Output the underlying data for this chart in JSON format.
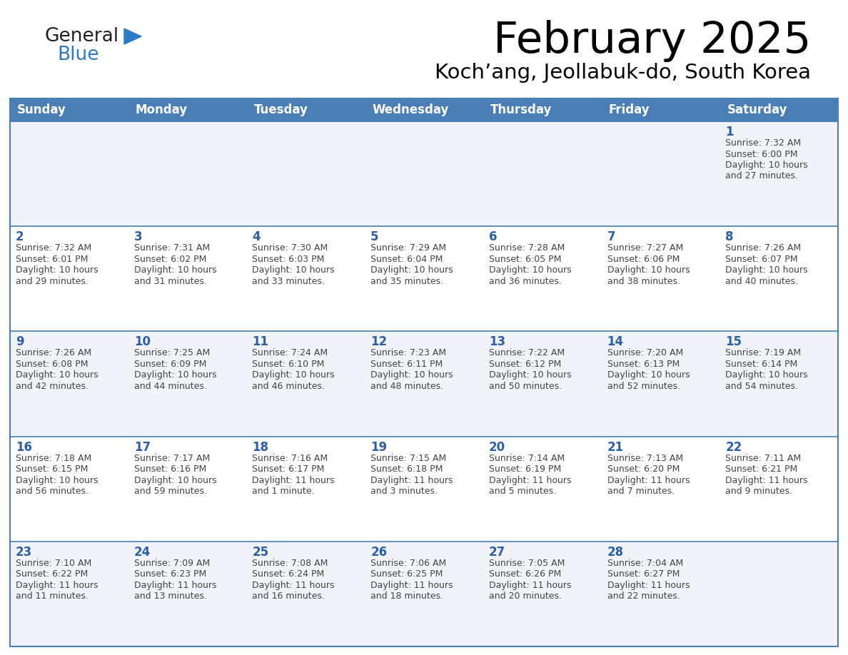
{
  "title": "February 2025",
  "subtitle": "Koch’ang, Jeollabuk-do, South Korea",
  "days_of_week": [
    "Sunday",
    "Monday",
    "Tuesday",
    "Wednesday",
    "Thursday",
    "Friday",
    "Saturday"
  ],
  "header_bg": "#4a7fb5",
  "header_text": "#ffffff",
  "row_bg_odd": "#f0f4f8",
  "row_bg_even": "#ffffff",
  "border_color": "#4a7fb5",
  "day_number_color": "#2e5fa3",
  "info_text_color": "#444444",
  "calendar": [
    [
      null,
      null,
      null,
      null,
      null,
      null,
      {
        "day": 1,
        "sunrise": "7:32 AM",
        "sunset": "6:00 PM",
        "daylight": "10 hours and 27 minutes."
      }
    ],
    [
      {
        "day": 2,
        "sunrise": "7:32 AM",
        "sunset": "6:01 PM",
        "daylight": "10 hours and 29 minutes."
      },
      {
        "day": 3,
        "sunrise": "7:31 AM",
        "sunset": "6:02 PM",
        "daylight": "10 hours and 31 minutes."
      },
      {
        "day": 4,
        "sunrise": "7:30 AM",
        "sunset": "6:03 PM",
        "daylight": "10 hours and 33 minutes."
      },
      {
        "day": 5,
        "sunrise": "7:29 AM",
        "sunset": "6:04 PM",
        "daylight": "10 hours and 35 minutes."
      },
      {
        "day": 6,
        "sunrise": "7:28 AM",
        "sunset": "6:05 PM",
        "daylight": "10 hours and 36 minutes."
      },
      {
        "day": 7,
        "sunrise": "7:27 AM",
        "sunset": "6:06 PM",
        "daylight": "10 hours and 38 minutes."
      },
      {
        "day": 8,
        "sunrise": "7:26 AM",
        "sunset": "6:07 PM",
        "daylight": "10 hours and 40 minutes."
      }
    ],
    [
      {
        "day": 9,
        "sunrise": "7:26 AM",
        "sunset": "6:08 PM",
        "daylight": "10 hours and 42 minutes."
      },
      {
        "day": 10,
        "sunrise": "7:25 AM",
        "sunset": "6:09 PM",
        "daylight": "10 hours and 44 minutes."
      },
      {
        "day": 11,
        "sunrise": "7:24 AM",
        "sunset": "6:10 PM",
        "daylight": "10 hours and 46 minutes."
      },
      {
        "day": 12,
        "sunrise": "7:23 AM",
        "sunset": "6:11 PM",
        "daylight": "10 hours and 48 minutes."
      },
      {
        "day": 13,
        "sunrise": "7:22 AM",
        "sunset": "6:12 PM",
        "daylight": "10 hours and 50 minutes."
      },
      {
        "day": 14,
        "sunrise": "7:20 AM",
        "sunset": "6:13 PM",
        "daylight": "10 hours and 52 minutes."
      },
      {
        "day": 15,
        "sunrise": "7:19 AM",
        "sunset": "6:14 PM",
        "daylight": "10 hours and 54 minutes."
      }
    ],
    [
      {
        "day": 16,
        "sunrise": "7:18 AM",
        "sunset": "6:15 PM",
        "daylight": "10 hours and 56 minutes."
      },
      {
        "day": 17,
        "sunrise": "7:17 AM",
        "sunset": "6:16 PM",
        "daylight": "10 hours and 59 minutes."
      },
      {
        "day": 18,
        "sunrise": "7:16 AM",
        "sunset": "6:17 PM",
        "daylight": "11 hours and 1 minute."
      },
      {
        "day": 19,
        "sunrise": "7:15 AM",
        "sunset": "6:18 PM",
        "daylight": "11 hours and 3 minutes."
      },
      {
        "day": 20,
        "sunrise": "7:14 AM",
        "sunset": "6:19 PM",
        "daylight": "11 hours and 5 minutes."
      },
      {
        "day": 21,
        "sunrise": "7:13 AM",
        "sunset": "6:20 PM",
        "daylight": "11 hours and 7 minutes."
      },
      {
        "day": 22,
        "sunrise": "7:11 AM",
        "sunset": "6:21 PM",
        "daylight": "11 hours and 9 minutes."
      }
    ],
    [
      {
        "day": 23,
        "sunrise": "7:10 AM",
        "sunset": "6:22 PM",
        "daylight": "11 hours and 11 minutes."
      },
      {
        "day": 24,
        "sunrise": "7:09 AM",
        "sunset": "6:23 PM",
        "daylight": "11 hours and 13 minutes."
      },
      {
        "day": 25,
        "sunrise": "7:08 AM",
        "sunset": "6:24 PM",
        "daylight": "11 hours and 16 minutes."
      },
      {
        "day": 26,
        "sunrise": "7:06 AM",
        "sunset": "6:25 PM",
        "daylight": "11 hours and 18 minutes."
      },
      {
        "day": 27,
        "sunrise": "7:05 AM",
        "sunset": "6:26 PM",
        "daylight": "11 hours and 20 minutes."
      },
      {
        "day": 28,
        "sunrise": "7:04 AM",
        "sunset": "6:27 PM",
        "daylight": "11 hours and 22 minutes."
      },
      null
    ]
  ],
  "logo_general_color": "#222222",
  "logo_blue_color": "#2a7ac7",
  "logo_triangle_color": "#2a7ac7",
  "figwidth": 11.88,
  "figheight": 9.18,
  "dpi": 100
}
